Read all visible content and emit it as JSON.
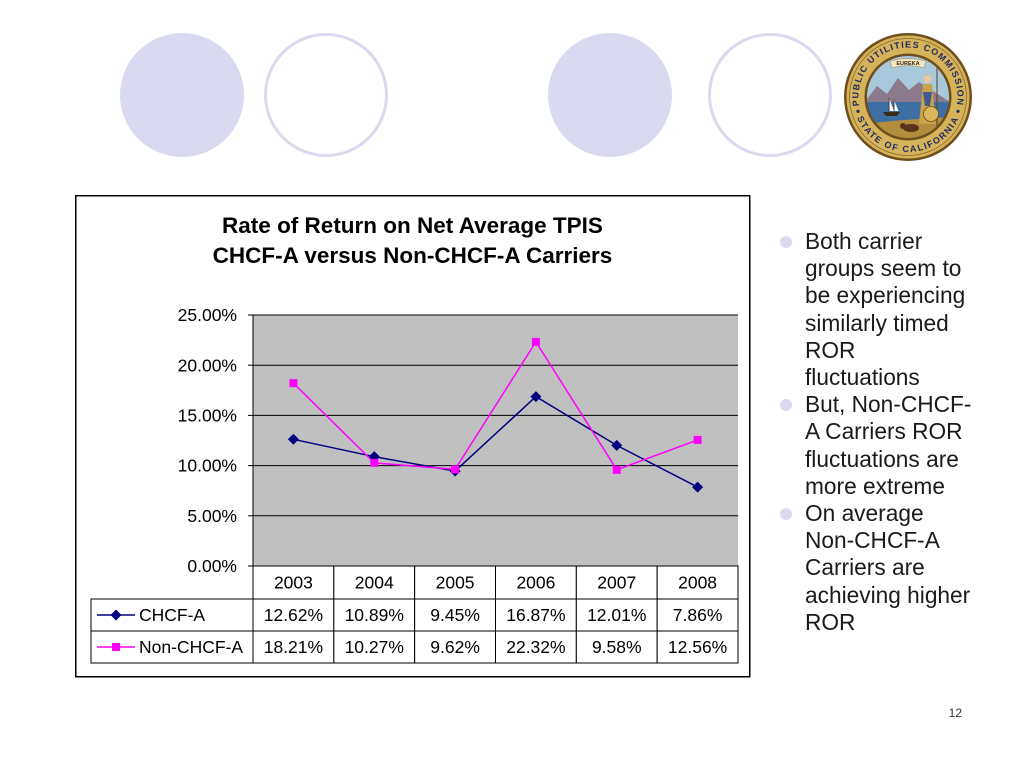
{
  "slide": {
    "colors": {
      "decor": "#D9D9F0",
      "text": "#1A1A1A"
    },
    "bullets": [
      "Both carrier groups seem to be experiencing similarly timed ROR fluctuations",
      "But, Non-CHCF-A Carriers ROR fluctuations are more extreme",
      "On average Non-CHCF-A Carriers are achieving higher ROR"
    ],
    "page_number": "12",
    "seal": {
      "top_text": "PUBLIC UTILITIES COMMISSION",
      "bottom_text": "STATE OF CALIFORNIA",
      "banner_text": "EUREKA"
    }
  },
  "chart_data": {
    "type": "line",
    "title": "Rate of Return on Net Average TPIS",
    "subtitle": "CHCF-A versus Non-CHCF-A Carriers",
    "categories": [
      "2003",
      "2004",
      "2005",
      "2006",
      "2007",
      "2008"
    ],
    "ylim": [
      0,
      25
    ],
    "yticks": [
      0,
      5,
      10,
      15,
      20,
      25
    ],
    "ytick_labels": [
      "0.00%",
      "5.00%",
      "10.00%",
      "15.00%",
      "20.00%",
      "25.00%"
    ],
    "grid": true,
    "plot_background": "#C0C0C0",
    "legend": "bottom data table",
    "series": [
      {
        "name": "CHCF-A",
        "values": [
          12.62,
          10.89,
          9.45,
          16.87,
          12.01,
          7.86
        ],
        "labels": [
          "12.62%",
          "10.89%",
          "9.45%",
          "16.87%",
          "12.01%",
          "7.86%"
        ],
        "color": "#000080",
        "marker": "diamond"
      },
      {
        "name": "Non-CHCF-A",
        "values": [
          18.21,
          10.27,
          9.62,
          22.32,
          9.58,
          12.56
        ],
        "labels": [
          "18.21%",
          "10.27%",
          "9.62%",
          "22.32%",
          "9.58%",
          "12.56%"
        ],
        "color": "#FF00FF",
        "marker": "square"
      }
    ]
  }
}
